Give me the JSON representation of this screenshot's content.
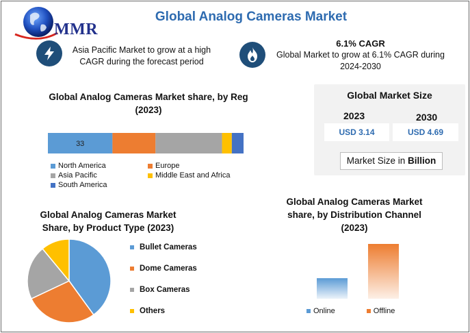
{
  "header": {
    "title": "Global Analog Cameras Market",
    "logo_text": "MMR"
  },
  "highlights": [
    {
      "icon": "lightning-icon",
      "text_line1": "Asia Pacific Market to grow at a high",
      "text_line2": "CAGR during the forecast period"
    },
    {
      "icon": "flame-icon",
      "heading": "6.1% CAGR",
      "text_line1": "Global Market to grow at 6.1% CAGR during",
      "text_line2": "2024-2030"
    }
  ],
  "market_size": {
    "heading": "Global Market Size",
    "years": [
      "2023",
      "2030"
    ],
    "values": [
      "USD 3.14",
      "USD 4.69"
    ],
    "unit_prefix": "Market Size in ",
    "unit_bold": "Billion"
  },
  "colors": {
    "blue": "#5b9bd5",
    "orange": "#ed7d31",
    "gray": "#a5a5a5",
    "yellow": "#ffc000",
    "darkblue": "#4472c4",
    "title_blue": "#2e6bb0",
    "icon_bg": "#1f4e79"
  },
  "chart_data": [
    {
      "type": "bar",
      "orientation": "horizontal-stacked",
      "title_line1": "Global Analog Cameras Market share, by Reg",
      "title_line2": "(2023)",
      "categories": [
        "2023"
      ],
      "series": [
        {
          "name": "North America",
          "values": [
            33
          ],
          "color": "#5b9bd5",
          "label": "33"
        },
        {
          "name": "Europe",
          "values": [
            22
          ],
          "color": "#ed7d31"
        },
        {
          "name": "Asia Pacific",
          "values": [
            34
          ],
          "color": "#a5a5a5"
        },
        {
          "name": "Middle East and Africa",
          "values": [
            5
          ],
          "color": "#ffc000"
        },
        {
          "name": "South America",
          "values": [
            6
          ],
          "color": "#4472c4"
        }
      ],
      "legend_position": "bottom"
    },
    {
      "type": "pie",
      "title_line1": "Global Analog Cameras Market",
      "title_line2": "Share, by Product Type (2023)",
      "slices": [
        {
          "name": "Bullet Cameras",
          "value": 40,
          "color": "#5b9bd5"
        },
        {
          "name": "Dome Cameras",
          "value": 28,
          "color": "#ed7d31"
        },
        {
          "name": "Box Cameras",
          "value": 21,
          "color": "#a5a5a5"
        },
        {
          "name": "Others",
          "value": 11,
          "color": "#ffc000"
        }
      ],
      "legend_position": "right"
    },
    {
      "type": "bar",
      "title_line1": "Global Analog Cameras Market",
      "title_line2": "share, by Distribution Channel",
      "title_line3": "(2023)",
      "categories": [
        "Online",
        "Offline"
      ],
      "values": [
        30,
        80
      ],
      "colors": [
        "#5b9bd5",
        "#ed7d31"
      ],
      "ylim": [
        0,
        80
      ],
      "legend_position": "bottom"
    }
  ]
}
